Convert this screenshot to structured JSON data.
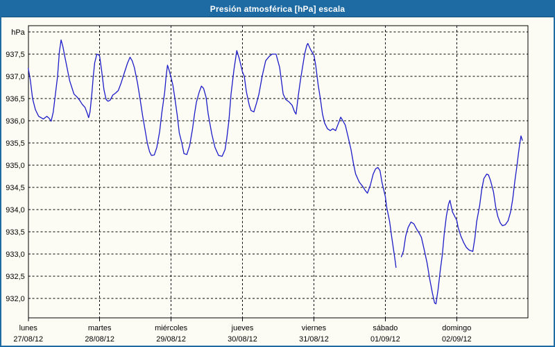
{
  "window": {
    "title": "Presión atmosférica [hPa] escala"
  },
  "colors": {
    "titlebar_bg": "#1E6BA4",
    "window_border": "#1E6BA4",
    "chart_bg": "#FCFCF4",
    "line": "#1A1AC8",
    "grid": "#000000"
  },
  "chart_data": {
    "type": "line",
    "title": "Presión atmosférica [hPa] escala",
    "grid": "dashed",
    "legend": "none",
    "y_axis": {
      "unit_label": "hPa",
      "axis_top_value": 938.14,
      "axis_bottom_value": 931.56,
      "gridline_values": [
        938,
        937.5,
        937,
        936.5,
        936,
        935.5,
        935,
        934.5,
        934,
        933.5,
        933,
        932.5,
        932
      ],
      "tick_labels": [
        {
          "value": 938,
          "label": "hPa"
        },
        {
          "value": 937.5,
          "label": "937,5"
        },
        {
          "value": 937,
          "label": "937,0"
        },
        {
          "value": 936.5,
          "label": "936,5"
        },
        {
          "value": 936,
          "label": "936,0"
        },
        {
          "value": 935.5,
          "label": "935,5"
        },
        {
          "value": 935,
          "label": "935,0"
        },
        {
          "value": 934.5,
          "label": "934,5"
        },
        {
          "value": 934,
          "label": "934,0"
        },
        {
          "value": 933.5,
          "label": "933,5"
        },
        {
          "value": 933,
          "label": "933,0"
        },
        {
          "value": 932.5,
          "label": "932,5"
        },
        {
          "value": 932,
          "label": "932,0"
        }
      ]
    },
    "x_axis": {
      "n_days": 7,
      "days": [
        {
          "name": "lunes",
          "date": "27/08/12"
        },
        {
          "name": "martes",
          "date": "28/08/12"
        },
        {
          "name": "miércoles",
          "date": "29/08/12"
        },
        {
          "name": "jueves",
          "date": "30/08/12"
        },
        {
          "name": "viernes",
          "date": "31/08/12"
        },
        {
          "name": "sábado",
          "date": "01/09/12"
        },
        {
          "name": "domingo",
          "date": "02/09/12"
        }
      ]
    },
    "series": [
      {
        "name": "Presión atmosférica",
        "color": "#1A1AC8",
        "points": [
          [
            0,
            937.18
          ],
          [
            0.03,
            936.9
          ],
          [
            0.06,
            936.5
          ],
          [
            0.1,
            936.25
          ],
          [
            0.145,
            936.1
          ],
          [
            0.21,
            936.04
          ],
          [
            0.26,
            936.1
          ],
          [
            0.29,
            936.06
          ],
          [
            0.32,
            935.99
          ],
          [
            0.35,
            936.2
          ],
          [
            0.38,
            936.6
          ],
          [
            0.41,
            937.0
          ],
          [
            0.435,
            937.55
          ],
          [
            0.46,
            937.82
          ],
          [
            0.485,
            937.67
          ],
          [
            0.515,
            937.42
          ],
          [
            0.55,
            937.14
          ],
          [
            0.58,
            936.9
          ],
          [
            0.61,
            936.75
          ],
          [
            0.64,
            936.6
          ],
          [
            0.68,
            936.54
          ],
          [
            0.72,
            936.46
          ],
          [
            0.755,
            936.37
          ],
          [
            0.795,
            936.3
          ],
          [
            0.825,
            936.17
          ],
          [
            0.845,
            936.07
          ],
          [
            0.865,
            936.2
          ],
          [
            0.89,
            936.6
          ],
          [
            0.91,
            937.0
          ],
          [
            0.93,
            937.3
          ],
          [
            0.96,
            937.5
          ],
          [
            0.99,
            937.48
          ],
          [
            1.0,
            937.45
          ],
          [
            1.03,
            937.1
          ],
          [
            1.06,
            936.7
          ],
          [
            1.09,
            936.48
          ],
          [
            1.115,
            936.44
          ],
          [
            1.145,
            936.46
          ],
          [
            1.185,
            936.58
          ],
          [
            1.22,
            936.62
          ],
          [
            1.26,
            936.68
          ],
          [
            1.3,
            936.85
          ],
          [
            1.35,
            937.1
          ],
          [
            1.39,
            937.3
          ],
          [
            1.425,
            937.43
          ],
          [
            1.455,
            937.35
          ],
          [
            1.485,
            937.2
          ],
          [
            1.53,
            936.85
          ],
          [
            1.57,
            936.45
          ],
          [
            1.6,
            936.13
          ],
          [
            1.64,
            935.75
          ],
          [
            1.67,
            935.48
          ],
          [
            1.7,
            935.3
          ],
          [
            1.725,
            935.22
          ],
          [
            1.765,
            935.23
          ],
          [
            1.8,
            935.4
          ],
          [
            1.84,
            935.76
          ],
          [
            1.87,
            936.18
          ],
          [
            1.91,
            936.64
          ],
          [
            1.93,
            937.0
          ],
          [
            1.95,
            937.25
          ],
          [
            1.97,
            937.15
          ],
          [
            2.0,
            936.97
          ],
          [
            2.025,
            936.8
          ],
          [
            2.055,
            936.48
          ],
          [
            2.085,
            936.13
          ],
          [
            2.115,
            935.73
          ],
          [
            2.15,
            935.5
          ],
          [
            2.18,
            935.26
          ],
          [
            2.22,
            935.24
          ],
          [
            2.26,
            935.44
          ],
          [
            2.3,
            935.81
          ],
          [
            2.33,
            936.17
          ],
          [
            2.355,
            936.42
          ],
          [
            2.395,
            936.65
          ],
          [
            2.425,
            936.78
          ],
          [
            2.455,
            936.73
          ],
          [
            2.49,
            936.53
          ],
          [
            2.52,
            936.15
          ],
          [
            2.57,
            935.7
          ],
          [
            2.615,
            935.4
          ],
          [
            2.665,
            935.22
          ],
          [
            2.715,
            935.2
          ],
          [
            2.755,
            935.35
          ],
          [
            2.78,
            935.6
          ],
          [
            2.81,
            936.0
          ],
          [
            2.84,
            936.6
          ],
          [
            2.88,
            937.15
          ],
          [
            2.92,
            937.58
          ],
          [
            2.955,
            937.4
          ],
          [
            3.0,
            937.1
          ],
          [
            3.025,
            937.0
          ],
          [
            3.055,
            936.65
          ],
          [
            3.095,
            936.35
          ],
          [
            3.12,
            936.23
          ],
          [
            3.16,
            936.2
          ],
          [
            3.2,
            936.42
          ],
          [
            3.23,
            936.6
          ],
          [
            3.275,
            937.0
          ],
          [
            3.325,
            937.35
          ],
          [
            3.375,
            937.45
          ],
          [
            3.415,
            937.5
          ],
          [
            3.47,
            937.5
          ],
          [
            3.52,
            937.2
          ],
          [
            3.57,
            936.6
          ],
          [
            3.605,
            936.48
          ],
          [
            3.655,
            936.42
          ],
          [
            3.695,
            936.35
          ],
          [
            3.73,
            936.2
          ],
          [
            3.75,
            936.15
          ],
          [
            3.78,
            936.55
          ],
          [
            3.81,
            936.9
          ],
          [
            3.84,
            937.2
          ],
          [
            3.87,
            937.5
          ],
          [
            3.9,
            937.7
          ],
          [
            3.915,
            937.74
          ],
          [
            3.955,
            937.6
          ],
          [
            4.0,
            937.48
          ],
          [
            4.025,
            937.25
          ],
          [
            4.06,
            936.8
          ],
          [
            4.09,
            936.5
          ],
          [
            4.12,
            936.16
          ],
          [
            4.15,
            935.95
          ],
          [
            4.19,
            935.82
          ],
          [
            4.23,
            935.78
          ],
          [
            4.265,
            935.82
          ],
          [
            4.305,
            935.78
          ],
          [
            4.345,
            935.95
          ],
          [
            4.375,
            936.08
          ],
          [
            4.4,
            936.02
          ],
          [
            4.44,
            935.9
          ],
          [
            4.48,
            935.63
          ],
          [
            4.52,
            935.35
          ],
          [
            4.555,
            935.03
          ],
          [
            4.585,
            934.8
          ],
          [
            4.635,
            934.62
          ],
          [
            4.685,
            934.52
          ],
          [
            4.72,
            934.43
          ],
          [
            4.75,
            934.37
          ],
          [
            4.79,
            934.55
          ],
          [
            4.83,
            934.8
          ],
          [
            4.865,
            934.92
          ],
          [
            4.895,
            934.95
          ],
          [
            4.925,
            934.88
          ],
          [
            4.955,
            934.6
          ],
          [
            5.0,
            934.3
          ],
          [
            5.02,
            934.05
          ],
          [
            5.06,
            933.74
          ],
          [
            5.09,
            933.38
          ],
          [
            5.12,
            933.05
          ],
          [
            5.14,
            932.82
          ],
          [
            5.15,
            932.7
          ],
          null,
          [
            5.225,
            932.94
          ],
          [
            5.255,
            933.07
          ],
          [
            5.285,
            933.4
          ],
          [
            5.32,
            933.6
          ],
          [
            5.36,
            933.72
          ],
          [
            5.4,
            933.68
          ],
          [
            5.44,
            933.56
          ],
          [
            5.475,
            933.47
          ],
          [
            5.505,
            933.38
          ],
          [
            5.545,
            933.1
          ],
          [
            5.585,
            932.8
          ],
          [
            5.62,
            932.45
          ],
          [
            5.66,
            932.12
          ],
          [
            5.69,
            931.9
          ],
          [
            5.71,
            931.88
          ],
          [
            5.74,
            932.21
          ],
          [
            5.77,
            932.63
          ],
          [
            5.8,
            933.0
          ],
          [
            5.825,
            933.45
          ],
          [
            5.855,
            933.85
          ],
          [
            5.885,
            934.12
          ],
          [
            5.905,
            934.21
          ],
          [
            5.94,
            933.95
          ],
          [
            6.0,
            933.76
          ],
          [
            6.02,
            933.6
          ],
          [
            6.06,
            933.4
          ],
          [
            6.1,
            933.25
          ],
          [
            6.135,
            933.15
          ],
          [
            6.175,
            933.09
          ],
          [
            6.225,
            933.06
          ],
          [
            6.255,
            933.37
          ],
          [
            6.28,
            933.73
          ],
          [
            6.32,
            934.08
          ],
          [
            6.35,
            934.45
          ],
          [
            6.38,
            934.7
          ],
          [
            6.42,
            934.8
          ],
          [
            6.445,
            934.78
          ],
          [
            6.475,
            934.65
          ],
          [
            6.515,
            934.4
          ],
          [
            6.545,
            934.07
          ],
          [
            6.575,
            933.85
          ],
          [
            6.61,
            933.7
          ],
          [
            6.64,
            933.64
          ],
          [
            6.68,
            933.66
          ],
          [
            6.72,
            933.75
          ],
          [
            6.755,
            933.95
          ],
          [
            6.785,
            934.24
          ],
          [
            6.815,
            934.65
          ],
          [
            6.845,
            935.0
          ],
          [
            6.865,
            935.27
          ],
          [
            6.885,
            935.5
          ],
          [
            6.9,
            935.66
          ],
          [
            6.92,
            935.56
          ]
        ]
      }
    ]
  }
}
